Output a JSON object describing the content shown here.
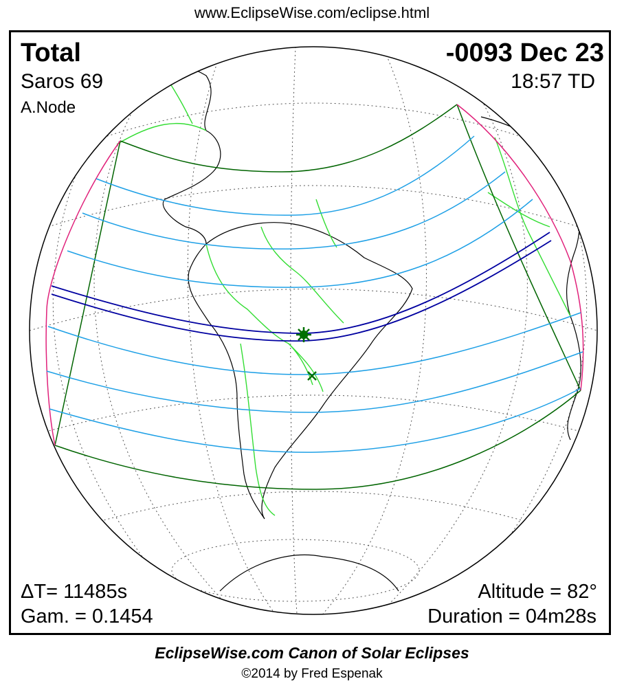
{
  "header": {
    "url": "www.EclipseWise.com/eclipse.html"
  },
  "eclipse": {
    "type": "Total",
    "saros": "Saros  69",
    "node": "A.Node",
    "date": "-0093 Dec 23",
    "time": "18:57 TD",
    "delta_t": "ΔT=  11485s",
    "gamma": "Gam. = 0.1454",
    "altitude": "Altitude = 82°",
    "duration": "Duration = 04m28s"
  },
  "footer": {
    "title": "EclipseWise.com Canon of Solar Eclipses",
    "copyright": "©2014 by Fred Espenak"
  },
  "colors": {
    "umbra_path": "#0000a0",
    "penumbra_lines": "#1ea0e6",
    "penumbra_limits": "#006400",
    "rise_set_curve": "#e0207a",
    "borders": "#33dd33",
    "coast": "#000000",
    "graticule": "#555555",
    "greatest_eclipse_marker": "#007000"
  },
  "icons": {
    "greatest_eclipse": "star-marker-icon",
    "subsolar_point": "x-marker-icon"
  }
}
